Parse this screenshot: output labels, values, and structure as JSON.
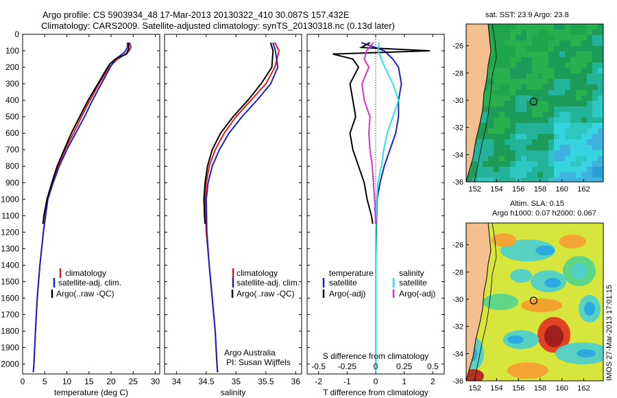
{
  "header": {
    "line1": "Argo profile: CS 5903934_48 17-Mar-2013 20130322_410 30.087S 157.432E",
    "line2": "Climatology: CARS2009. Satellite-adjusted climatology: synTS_20130318.nc (0.13d later)"
  },
  "credit": {
    "line1": "Argo Australia",
    "line2": "PI: Susan Wijffels"
  },
  "stamp": "IMOS 27-Mar-2013 17:01:15",
  "colors": {
    "red": "#e8151b",
    "blue": "#1c1ccf",
    "black": "#000000",
    "cyan": "#22e5e5",
    "magenta": "#e22ad6",
    "land": "#f5c08f"
  },
  "chart_data": [
    {
      "type": "line",
      "name": "temperature",
      "xlabel": "temperature (deg C)",
      "ylabel": "",
      "xlim": [
        0,
        31
      ],
      "ylim": [
        2060,
        0
      ],
      "xticks": [
        0,
        5,
        10,
        15,
        20,
        25,
        30
      ],
      "yticks": [
        0,
        100,
        200,
        300,
        400,
        500,
        600,
        700,
        800,
        900,
        1000,
        1100,
        1200,
        1300,
        1400,
        1500,
        1600,
        1700,
        1800,
        1900,
        2000
      ],
      "legend": [
        "climatology",
        "satellite-adj. clim.",
        "Argo(..raw -QC)"
      ],
      "series": [
        {
          "name": "climatology",
          "color": "red",
          "points": [
            [
              24.2,
              50
            ],
            [
              24.5,
              80
            ],
            [
              23.8,
              110
            ],
            [
              21.5,
              150
            ],
            [
              19.5,
              200
            ],
            [
              17.3,
              300
            ],
            [
              15.2,
              400
            ],
            [
              13.3,
              500
            ],
            [
              11.5,
              600
            ],
            [
              9.6,
              700
            ],
            [
              8.0,
              800
            ],
            [
              6.7,
              900
            ],
            [
              5.6,
              1000
            ],
            [
              4.7,
              1200
            ],
            [
              3.9,
              1400
            ],
            [
              3.3,
              1600
            ],
            [
              2.9,
              1800
            ],
            [
              2.55,
              2000
            ],
            [
              2.4,
              2050
            ]
          ]
        },
        {
          "name": "satellite-adj. clim.",
          "color": "blue",
          "points": [
            [
              23.7,
              50
            ],
            [
              23.7,
              80
            ],
            [
              23.0,
              110
            ],
            [
              21.0,
              150
            ],
            [
              19.8,
              200
            ],
            [
              17.8,
              300
            ],
            [
              15.8,
              400
            ],
            [
              14.0,
              500
            ],
            [
              12.0,
              600
            ],
            [
              10.0,
              700
            ],
            [
              8.3,
              800
            ],
            [
              6.9,
              900
            ],
            [
              5.7,
              1000
            ],
            [
              4.7,
              1200
            ],
            [
              3.9,
              1400
            ],
            [
              3.3,
              1600
            ],
            [
              2.9,
              1800
            ],
            [
              2.55,
              2000
            ],
            [
              2.4,
              2050
            ]
          ]
        },
        {
          "name": "Argo(..raw -QC)",
          "color": "black",
          "points": [
            [
              24.0,
              50
            ],
            [
              24.0,
              85
            ],
            [
              23.5,
              120
            ],
            [
              21.0,
              150
            ],
            [
              19.7,
              180
            ],
            [
              19.2,
              200
            ],
            [
              17.0,
              300
            ],
            [
              14.8,
              400
            ],
            [
              12.9,
              500
            ],
            [
              11.0,
              600
            ],
            [
              9.4,
              700
            ],
            [
              7.8,
              800
            ],
            [
              6.6,
              900
            ],
            [
              5.5,
              1000
            ],
            [
              4.8,
              1100
            ],
            [
              4.6,
              1150
            ]
          ]
        }
      ]
    },
    {
      "type": "line",
      "name": "salinity",
      "xlabel": "salinity",
      "xlim": [
        33.8,
        36.1
      ],
      "ylim": [
        2060,
        0
      ],
      "xticks": [
        34,
        34.5,
        35,
        35.5,
        36
      ],
      "legend": [
        "climatology",
        "satellite-adj. clim.",
        "Argo(..raw -QC)"
      ],
      "series": [
        {
          "name": "climatology",
          "color": "red",
          "points": [
            [
              35.65,
              50
            ],
            [
              35.72,
              100
            ],
            [
              35.65,
              200
            ],
            [
              35.5,
              300
            ],
            [
              35.25,
              400
            ],
            [
              35.0,
              500
            ],
            [
              34.8,
              600
            ],
            [
              34.65,
              700
            ],
            [
              34.55,
              800
            ],
            [
              34.5,
              900
            ],
            [
              34.48,
              1000
            ],
            [
              34.5,
              1200
            ],
            [
              34.55,
              1400
            ],
            [
              34.6,
              1600
            ],
            [
              34.65,
              1800
            ],
            [
              34.68,
              2000
            ],
            [
              34.69,
              2050
            ]
          ]
        },
        {
          "name": "satellite-adj. clim.",
          "color": "blue",
          "points": [
            [
              35.62,
              50
            ],
            [
              35.66,
              100
            ],
            [
              35.7,
              200
            ],
            [
              35.58,
              300
            ],
            [
              35.35,
              400
            ],
            [
              35.1,
              500
            ],
            [
              34.88,
              600
            ],
            [
              34.72,
              700
            ],
            [
              34.6,
              800
            ],
            [
              34.53,
              900
            ],
            [
              34.5,
              1000
            ],
            [
              34.51,
              1200
            ],
            [
              34.55,
              1400
            ],
            [
              34.6,
              1600
            ],
            [
              34.65,
              1800
            ],
            [
              34.68,
              2000
            ],
            [
              34.69,
              2050
            ]
          ]
        },
        {
          "name": "Argo(..raw -QC)",
          "color": "black",
          "points": [
            [
              35.58,
              50
            ],
            [
              35.62,
              100
            ],
            [
              35.6,
              200
            ],
            [
              35.42,
              300
            ],
            [
              35.2,
              400
            ],
            [
              34.95,
              500
            ],
            [
              34.74,
              600
            ],
            [
              34.6,
              700
            ],
            [
              34.52,
              800
            ],
            [
              34.48,
              900
            ],
            [
              34.46,
              1000
            ],
            [
              34.47,
              1100
            ],
            [
              34.48,
              1150
            ]
          ]
        }
      ]
    },
    {
      "type": "line",
      "name": "difference",
      "xlabel": "T difference from climatology",
      "xlabel2": "S difference from climatology",
      "xlim": [
        -2.4,
        2.4
      ],
      "ylim": [
        2060,
        0
      ],
      "xticks": [
        -2,
        -1,
        0,
        1,
        2
      ],
      "xticks_top": [
        -0.5,
        -0.25,
        0,
        0.25,
        0.5
      ],
      "legend_headers": [
        "temperature",
        "salinity"
      ],
      "legend": [
        "satellite",
        "Argo(-adj)",
        "satellite",
        "Argo(-adj)"
      ],
      "series": [
        {
          "name": "T satellite",
          "color": "blue",
          "points": [
            [
              -0.5,
              50
            ],
            [
              0.3,
              100
            ],
            [
              0.6,
              150
            ],
            [
              0.8,
              200
            ],
            [
              0.9,
              300
            ],
            [
              0.8,
              400
            ],
            [
              0.8,
              500
            ],
            [
              0.7,
              600
            ],
            [
              0.5,
              700
            ],
            [
              0.3,
              800
            ],
            [
              0.15,
              900
            ],
            [
              0.05,
              1000
            ],
            [
              0.02,
              1200
            ],
            [
              0.0,
              1400
            ],
            [
              0.0,
              2050
            ]
          ]
        },
        {
          "name": "T Argo(-adj)",
          "color": "black",
          "points": [
            [
              -0.2,
              50
            ],
            [
              -0.5,
              80
            ],
            [
              1.9,
              100
            ],
            [
              -1.5,
              120
            ],
            [
              -0.8,
              150
            ],
            [
              -0.6,
              200
            ],
            [
              -0.9,
              300
            ],
            [
              -0.8,
              400
            ],
            [
              -0.7,
              500
            ],
            [
              -0.9,
              600
            ],
            [
              -0.8,
              700
            ],
            [
              -0.6,
              800
            ],
            [
              -0.4,
              900
            ],
            [
              -0.3,
              1000
            ],
            [
              -0.15,
              1100
            ],
            [
              -0.1,
              1150
            ]
          ]
        },
        {
          "name": "S satellite",
          "color": "cyan",
          "points": [
            [
              0.03,
              50
            ],
            [
              0.02,
              100
            ],
            [
              0.08,
              200
            ],
            [
              0.15,
              300
            ],
            [
              0.2,
              400
            ],
            [
              0.15,
              500
            ],
            [
              0.1,
              600
            ],
            [
              0.07,
              700
            ],
            [
              0.05,
              800
            ],
            [
              0.02,
              900
            ],
            [
              0.01,
              1000
            ],
            [
              0.0,
              1200
            ],
            [
              0.0,
              2050
            ]
          ]
        },
        {
          "name": "S Argo(-adj)",
          "color": "magenta",
          "points": [
            [
              -0.02,
              50
            ],
            [
              -0.08,
              100
            ],
            [
              -0.1,
              150
            ],
            [
              -0.06,
              200
            ],
            [
              -0.12,
              300
            ],
            [
              -0.1,
              400
            ],
            [
              -0.05,
              500
            ],
            [
              -0.06,
              600
            ],
            [
              -0.05,
              700
            ],
            [
              -0.03,
              800
            ],
            [
              -0.02,
              900
            ],
            [
              -0.01,
              1000
            ],
            [
              0.0,
              1150
            ]
          ]
        }
      ]
    },
    {
      "type": "heatmap",
      "name": "sst-map",
      "title": "sat. SST: 23.9 Argo: 23.8",
      "xticks": [
        152,
        154,
        156,
        158,
        160,
        162
      ],
      "yticks": [
        -26,
        -28,
        -30,
        -32,
        -34,
        -36
      ],
      "xlim": [
        151.2,
        163.8
      ],
      "ylim": [
        -36,
        -24.4
      ],
      "marker": [
        157.4,
        -30.1
      ]
    },
    {
      "type": "heatmap",
      "name": "sla-map",
      "title": "Altim. SLA: 0.15",
      "subtitle": "Argo h1000: 0.07 h2000: 0.067",
      "xticks": [
        152,
        154,
        156,
        158,
        160,
        162
      ],
      "yticks": [
        -26,
        -28,
        -30,
        -32,
        -34,
        -36
      ],
      "xlim": [
        151.2,
        163.8
      ],
      "ylim": [
        -36,
        -24.4
      ],
      "marker": [
        157.4,
        -30.1
      ]
    }
  ]
}
